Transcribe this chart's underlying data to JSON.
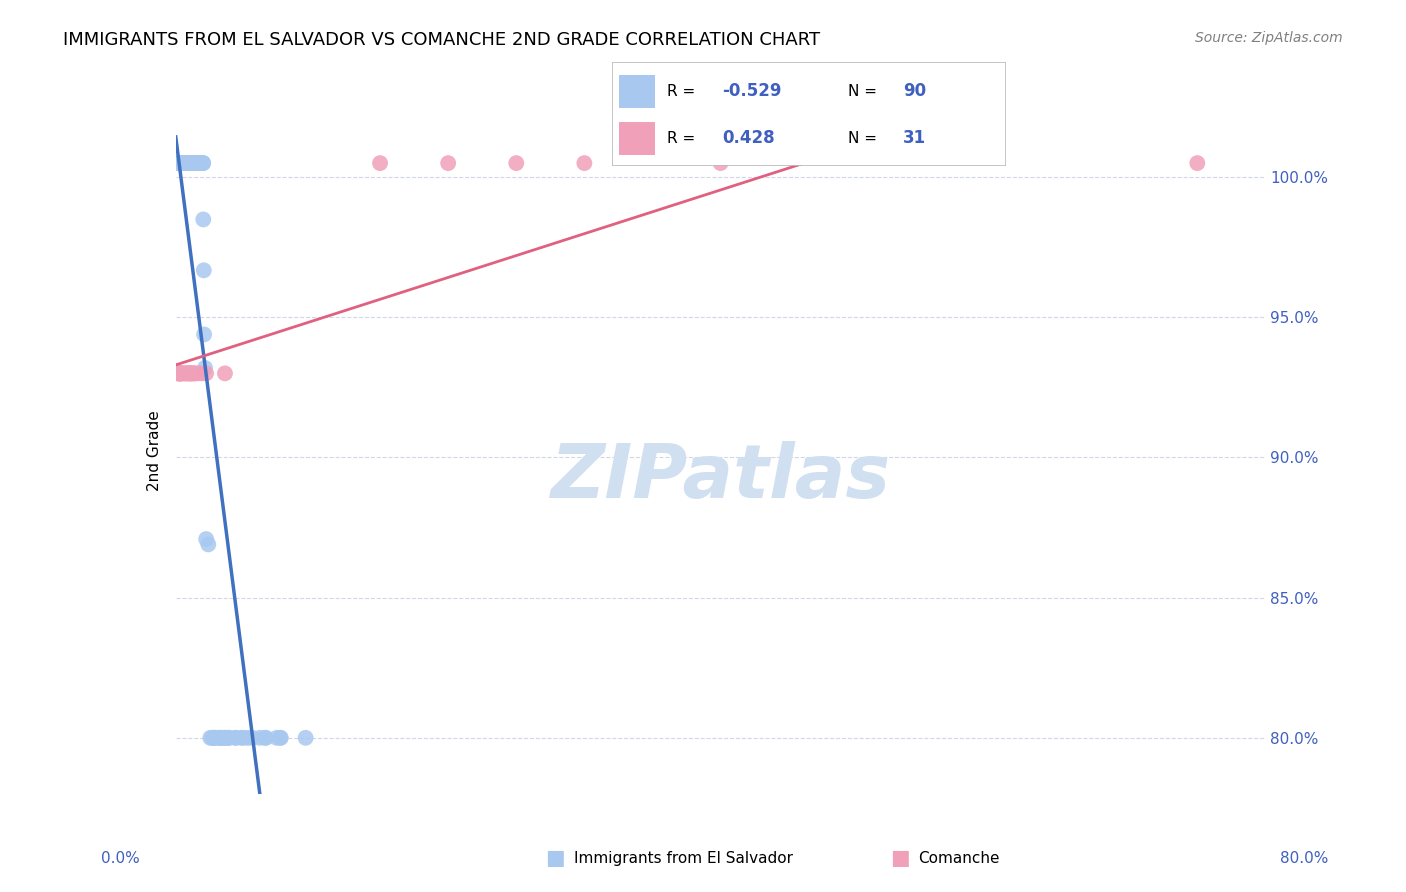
{
  "title": "IMMIGRANTS FROM EL SALVADOR VS COMANCHE 2ND GRADE CORRELATION CHART",
  "source": "Source: ZipAtlas.com",
  "ylabel": "2nd Grade",
  "ytick_labels": [
    "100.0%",
    "95.0%",
    "90.0%",
    "85.0%",
    "80.0%"
  ],
  "ytick_positions": [
    1.0,
    0.95,
    0.9,
    0.85,
    0.8
  ],
  "blue_color": "#a8c8f0",
  "pink_color": "#f0a0b8",
  "blue_line_color": "#4070c0",
  "pink_line_color": "#e06080",
  "dashed_line_color": "#b0c8e8",
  "text_color": "#4060c0",
  "background_color": "#ffffff",
  "watermark_color": "#d0e0f0",
  "xlim": [
    0.0,
    0.8
  ],
  "ylim": [
    0.78,
    1.025
  ],
  "r_blue": "-0.529",
  "n_blue": "90",
  "r_pink": "0.428",
  "n_pink": "31"
}
